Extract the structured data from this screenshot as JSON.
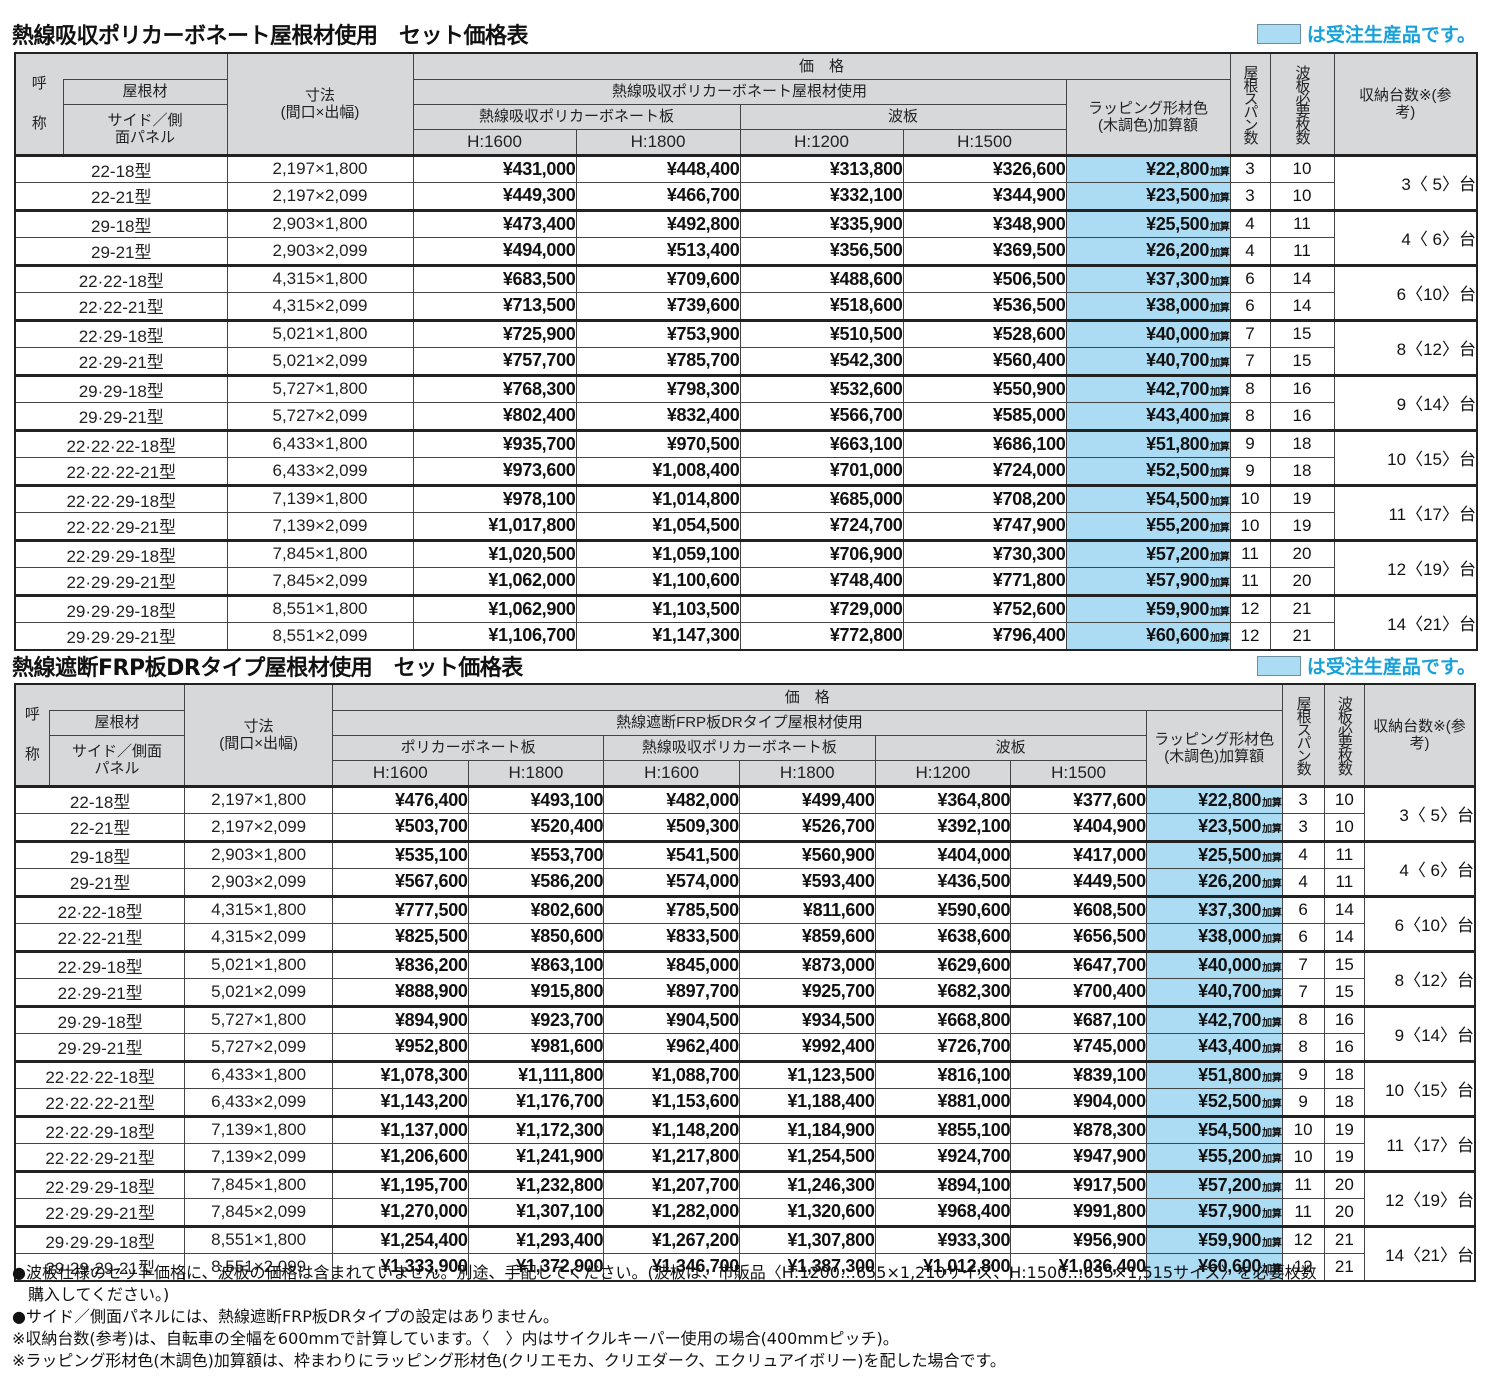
{
  "legend": {
    "text": "は受注生産品です。",
    "swatch_color": "#abdcf4"
  },
  "table1": {
    "title": "熱線吸収ポリカーボネート屋根材使用　セット価格表",
    "headers": {
      "name_top": "呼",
      "name_bottom": "称",
      "roof": "屋根材",
      "side": "サイド／側面パネル",
      "dims": "寸法",
      "dims_sub": "(間口×出幅)",
      "price": "価　格",
      "group": "熱線吸収ポリカーボネート屋根材使用",
      "sub1": "熱線吸収ポリカーボネート板",
      "sub2": "波板",
      "cols": [
        "H:1600",
        "H:1800",
        "H:1200",
        "H:1500"
      ],
      "wrap": "ラッピング形材色(木調色)加算額",
      "span": "屋根スパン数",
      "sheets": "波板必要枚数",
      "capacity": "収納台数※(参考)"
    },
    "rows": [
      {
        "name": "22-18型",
        "dim": "2,197×1,800",
        "p": [
          "¥431,000",
          "¥448,400",
          "¥313,800",
          "¥326,600"
        ],
        "wrap": "¥22,800",
        "span": "3",
        "sheets": "10"
      },
      {
        "name": "22-21型",
        "dim": "2,197×2,099",
        "p": [
          "¥449,300",
          "¥466,700",
          "¥332,100",
          "¥344,900"
        ],
        "wrap": "¥23,500",
        "span": "3",
        "sheets": "10"
      },
      {
        "name": "29-18型",
        "dim": "2,903×1,800",
        "p": [
          "¥473,400",
          "¥492,800",
          "¥335,900",
          "¥348,900"
        ],
        "wrap": "¥25,500",
        "span": "4",
        "sheets": "11"
      },
      {
        "name": "29-21型",
        "dim": "2,903×2,099",
        "p": [
          "¥494,000",
          "¥513,400",
          "¥356,500",
          "¥369,500"
        ],
        "wrap": "¥26,200",
        "span": "4",
        "sheets": "11"
      },
      {
        "name": "22·22-18型",
        "dim": "4,315×1,800",
        "p": [
          "¥683,500",
          "¥709,600",
          "¥488,600",
          "¥506,500"
        ],
        "wrap": "¥37,300",
        "span": "6",
        "sheets": "14"
      },
      {
        "name": "22·22-21型",
        "dim": "4,315×2,099",
        "p": [
          "¥713,500",
          "¥739,600",
          "¥518,600",
          "¥536,500"
        ],
        "wrap": "¥38,000",
        "span": "6",
        "sheets": "14"
      },
      {
        "name": "22·29-18型",
        "dim": "5,021×1,800",
        "p": [
          "¥725,900",
          "¥753,900",
          "¥510,500",
          "¥528,600"
        ],
        "wrap": "¥40,000",
        "span": "7",
        "sheets": "15"
      },
      {
        "name": "22·29-21型",
        "dim": "5,021×2,099",
        "p": [
          "¥757,700",
          "¥785,700",
          "¥542,300",
          "¥560,400"
        ],
        "wrap": "¥40,700",
        "span": "7",
        "sheets": "15"
      },
      {
        "name": "29·29-18型",
        "dim": "5,727×1,800",
        "p": [
          "¥768,300",
          "¥798,300",
          "¥532,600",
          "¥550,900"
        ],
        "wrap": "¥42,700",
        "span": "8",
        "sheets": "16"
      },
      {
        "name": "29·29-21型",
        "dim": "5,727×2,099",
        "p": [
          "¥802,400",
          "¥832,400",
          "¥566,700",
          "¥585,000"
        ],
        "wrap": "¥43,400",
        "span": "8",
        "sheets": "16"
      },
      {
        "name": "22·22·22-18型",
        "dim": "6,433×1,800",
        "p": [
          "¥935,700",
          "¥970,500",
          "¥663,100",
          "¥686,100"
        ],
        "wrap": "¥51,800",
        "span": "9",
        "sheets": "18"
      },
      {
        "name": "22·22·22-21型",
        "dim": "6,433×2,099",
        "p": [
          "¥973,600",
          "¥1,008,400",
          "¥701,000",
          "¥724,000"
        ],
        "wrap": "¥52,500",
        "span": "9",
        "sheets": "18"
      },
      {
        "name": "22·22·29-18型",
        "dim": "7,139×1,800",
        "p": [
          "¥978,100",
          "¥1,014,800",
          "¥685,000",
          "¥708,200"
        ],
        "wrap": "¥54,500",
        "span": "10",
        "sheets": "19"
      },
      {
        "name": "22·22·29-21型",
        "dim": "7,139×2,099",
        "p": [
          "¥1,017,800",
          "¥1,054,500",
          "¥724,700",
          "¥747,900"
        ],
        "wrap": "¥55,200",
        "span": "10",
        "sheets": "19"
      },
      {
        "name": "22·29·29-18型",
        "dim": "7,845×1,800",
        "p": [
          "¥1,020,500",
          "¥1,059,100",
          "¥706,900",
          "¥730,300"
        ],
        "wrap": "¥57,200",
        "span": "11",
        "sheets": "20"
      },
      {
        "name": "22·29·29-21型",
        "dim": "7,845×2,099",
        "p": [
          "¥1,062,000",
          "¥1,100,600",
          "¥748,400",
          "¥771,800"
        ],
        "wrap": "¥57,900",
        "span": "11",
        "sheets": "20"
      },
      {
        "name": "29·29·29-18型",
        "dim": "8,551×1,800",
        "p": [
          "¥1,062,900",
          "¥1,103,500",
          "¥729,000",
          "¥752,600"
        ],
        "wrap": "¥59,900",
        "span": "12",
        "sheets": "21"
      },
      {
        "name": "29·29·29-21型",
        "dim": "8,551×2,099",
        "p": [
          "¥1,106,700",
          "¥1,147,300",
          "¥772,800",
          "¥796,400"
        ],
        "wrap": "¥60,600",
        "span": "12",
        "sheets": "21"
      }
    ],
    "capacity": [
      "3〈 5〉台",
      "4〈 6〉台",
      "6〈10〉台",
      "8〈12〉台",
      "9〈14〉台",
      "10〈15〉台",
      "11〈17〉台",
      "12〈19〉台",
      "14〈21〉台"
    ]
  },
  "table2": {
    "title": "熱線遮断FRP板DRタイプ屋根材使用　セット価格表",
    "headers": {
      "name_top": "呼",
      "name_bottom": "称",
      "roof": "屋根材",
      "side": "サイド／側面パネル",
      "dims": "寸法",
      "dims_sub": "(間口×出幅)",
      "price": "価　格",
      "group": "熱線遮断FRP板DRタイプ屋根材使用",
      "sub1": "ポリカーボネート板",
      "sub2": "熱線吸収ポリカーボネート板",
      "sub3": "波板",
      "cols": [
        "H:1600",
        "H:1800",
        "H:1600",
        "H:1800",
        "H:1200",
        "H:1500"
      ],
      "wrap": "ラッピング形材色(木調色)加算額",
      "span": "屋根スパン数",
      "sheets": "波板必要枚数",
      "capacity": "収納台数※(参考)"
    },
    "rows": [
      {
        "name": "22-18型",
        "dim": "2,197×1,800",
        "p": [
          "¥476,400",
          "¥493,100",
          "¥482,000",
          "¥499,400",
          "¥364,800",
          "¥377,600"
        ],
        "wrap": "¥22,800",
        "span": "3",
        "sheets": "10"
      },
      {
        "name": "22-21型",
        "dim": "2,197×2,099",
        "p": [
          "¥503,700",
          "¥520,400",
          "¥509,300",
          "¥526,700",
          "¥392,100",
          "¥404,900"
        ],
        "wrap": "¥23,500",
        "span": "3",
        "sheets": "10"
      },
      {
        "name": "29-18型",
        "dim": "2,903×1,800",
        "p": [
          "¥535,100",
          "¥553,700",
          "¥541,500",
          "¥560,900",
          "¥404,000",
          "¥417,000"
        ],
        "wrap": "¥25,500",
        "span": "4",
        "sheets": "11"
      },
      {
        "name": "29-21型",
        "dim": "2,903×2,099",
        "p": [
          "¥567,600",
          "¥586,200",
          "¥574,000",
          "¥593,400",
          "¥436,500",
          "¥449,500"
        ],
        "wrap": "¥26,200",
        "span": "4",
        "sheets": "11"
      },
      {
        "name": "22·22-18型",
        "dim": "4,315×1,800",
        "p": [
          "¥777,500",
          "¥802,600",
          "¥785,500",
          "¥811,600",
          "¥590,600",
          "¥608,500"
        ],
        "wrap": "¥37,300",
        "span": "6",
        "sheets": "14"
      },
      {
        "name": "22·22-21型",
        "dim": "4,315×2,099",
        "p": [
          "¥825,500",
          "¥850,600",
          "¥833,500",
          "¥859,600",
          "¥638,600",
          "¥656,500"
        ],
        "wrap": "¥38,000",
        "span": "6",
        "sheets": "14"
      },
      {
        "name": "22·29-18型",
        "dim": "5,021×1,800",
        "p": [
          "¥836,200",
          "¥863,100",
          "¥845,000",
          "¥873,000",
          "¥629,600",
          "¥647,700"
        ],
        "wrap": "¥40,000",
        "span": "7",
        "sheets": "15"
      },
      {
        "name": "22·29-21型",
        "dim": "5,021×2,099",
        "p": [
          "¥888,900",
          "¥915,800",
          "¥897,700",
          "¥925,700",
          "¥682,300",
          "¥700,400"
        ],
        "wrap": "¥40,700",
        "span": "7",
        "sheets": "15"
      },
      {
        "name": "29·29-18型",
        "dim": "5,727×1,800",
        "p": [
          "¥894,900",
          "¥923,700",
          "¥904,500",
          "¥934,500",
          "¥668,800",
          "¥687,100"
        ],
        "wrap": "¥42,700",
        "span": "8",
        "sheets": "16"
      },
      {
        "name": "29·29-21型",
        "dim": "5,727×2,099",
        "p": [
          "¥952,800",
          "¥981,600",
          "¥962,400",
          "¥992,400",
          "¥726,700",
          "¥745,000"
        ],
        "wrap": "¥43,400",
        "span": "8",
        "sheets": "16"
      },
      {
        "name": "22·22·22-18型",
        "dim": "6,433×1,800",
        "p": [
          "¥1,078,300",
          "¥1,111,800",
          "¥1,088,700",
          "¥1,123,500",
          "¥816,100",
          "¥839,100"
        ],
        "wrap": "¥51,800",
        "span": "9",
        "sheets": "18"
      },
      {
        "name": "22·22·22-21型",
        "dim": "6,433×2,099",
        "p": [
          "¥1,143,200",
          "¥1,176,700",
          "¥1,153,600",
          "¥1,188,400",
          "¥881,000",
          "¥904,000"
        ],
        "wrap": "¥52,500",
        "span": "9",
        "sheets": "18"
      },
      {
        "name": "22·22·29-18型",
        "dim": "7,139×1,800",
        "p": [
          "¥1,137,000",
          "¥1,172,300",
          "¥1,148,200",
          "¥1,184,900",
          "¥855,100",
          "¥878,300"
        ],
        "wrap": "¥54,500",
        "span": "10",
        "sheets": "19"
      },
      {
        "name": "22·22·29-21型",
        "dim": "7,139×2,099",
        "p": [
          "¥1,206,600",
          "¥1,241,900",
          "¥1,217,800",
          "¥1,254,500",
          "¥924,700",
          "¥947,900"
        ],
        "wrap": "¥55,200",
        "span": "10",
        "sheets": "19"
      },
      {
        "name": "22·29·29-18型",
        "dim": "7,845×1,800",
        "p": [
          "¥1,195,700",
          "¥1,232,800",
          "¥1,207,700",
          "¥1,246,300",
          "¥894,100",
          "¥917,500"
        ],
        "wrap": "¥57,200",
        "span": "11",
        "sheets": "20"
      },
      {
        "name": "22·29·29-21型",
        "dim": "7,845×2,099",
        "p": [
          "¥1,270,000",
          "¥1,307,100",
          "¥1,282,000",
          "¥1,320,600",
          "¥968,400",
          "¥991,800"
        ],
        "wrap": "¥57,900",
        "span": "11",
        "sheets": "20"
      },
      {
        "name": "29·29·29-18型",
        "dim": "8,551×1,800",
        "p": [
          "¥1,254,400",
          "¥1,293,400",
          "¥1,267,200",
          "¥1,307,800",
          "¥933,300",
          "¥956,900"
        ],
        "wrap": "¥59,900",
        "span": "12",
        "sheets": "21"
      },
      {
        "name": "29·29·29-21型",
        "dim": "8,551×2,099",
        "p": [
          "¥1,333,900",
          "¥1,372,900",
          "¥1,346,700",
          "¥1,387,300",
          "¥1,012,800",
          "¥1,036,400"
        ],
        "wrap": "¥60,600",
        "span": "12",
        "sheets": "21"
      }
    ],
    "capacity": [
      "3〈 5〉台",
      "4〈 6〉台",
      "6〈10〉台",
      "8〈12〉台",
      "9〈14〉台",
      "10〈15〉台",
      "11〈17〉台",
      "12〈19〉台",
      "14〈21〉台"
    ]
  },
  "wrap_suffix": "加算",
  "notes": [
    "●波板仕様のセット価格に、波板の価格は含まれていません。別途、手配してください。(波板は、市販品〈H:1200…655×1,210サイズ、H:1500…655×1,515サイズ〉を必要枚数",
    "購入してください。)",
    "●サイド／側面パネルには、熱線遮断FRP板DRタイプの設定はありません。",
    "※収納台数(参考)は、自転車の全幅を600mmで計算しています。〈　〉内はサイクルキーパー使用の場合(400mmピッチ)。",
    "※ラッピング形材色(木調色)加算額は、枠まわりにラッピング形材色(クリエモカ、クリエダーク、エクリュアイボリー)を配した場合です。"
  ]
}
